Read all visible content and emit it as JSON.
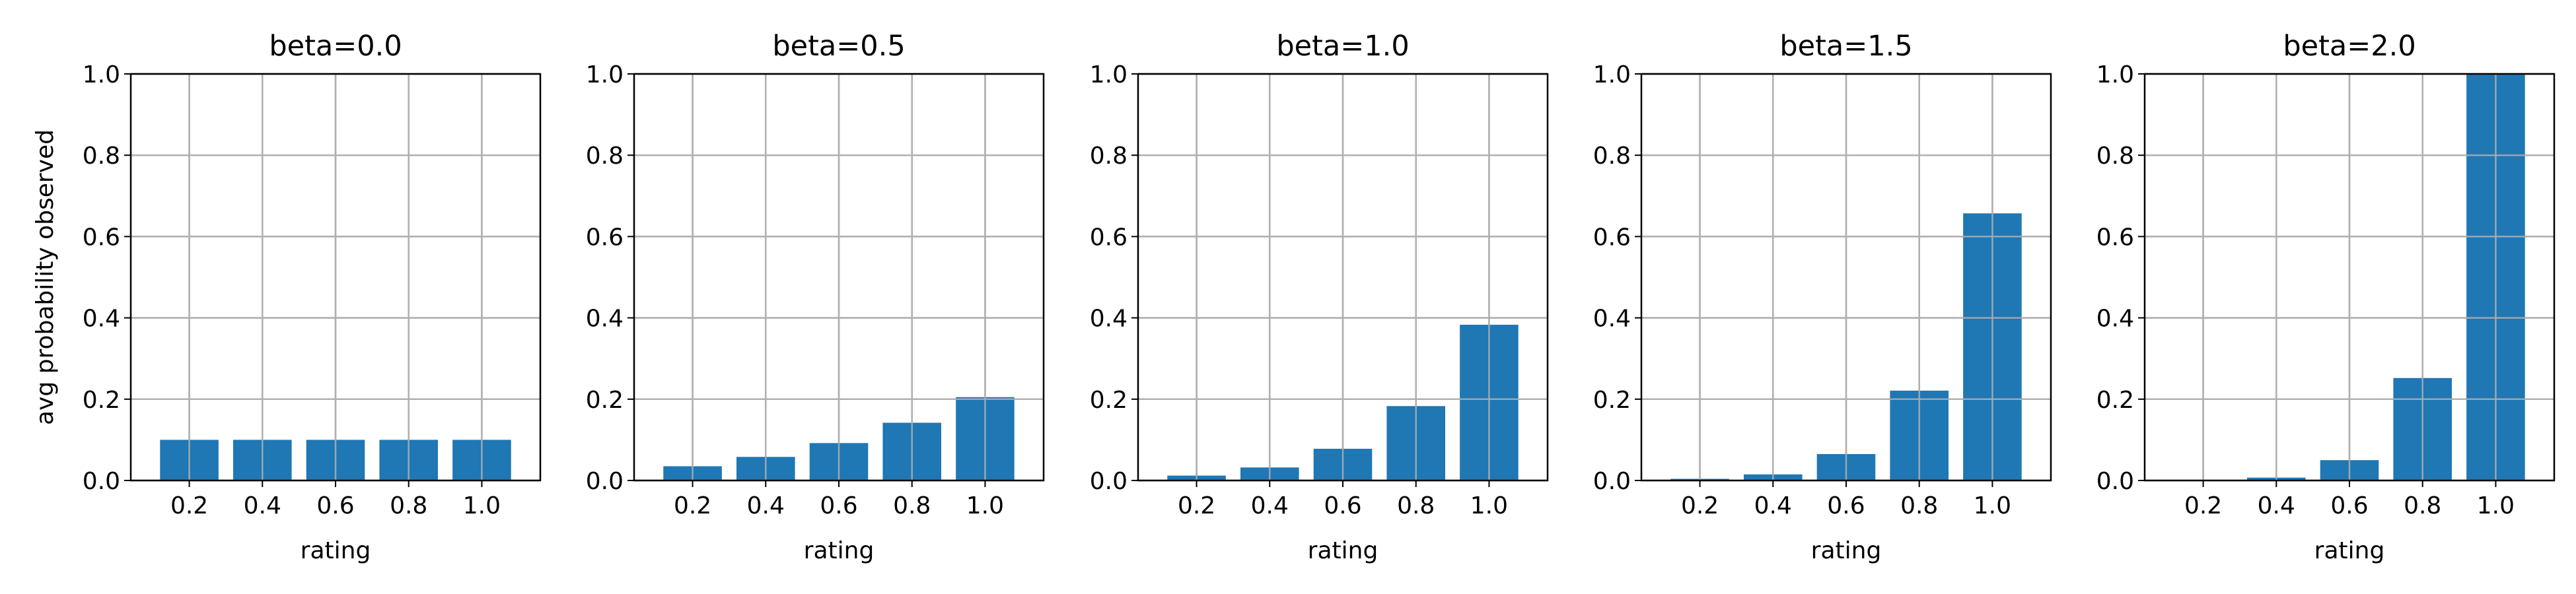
{
  "chart_data": [
    {
      "type": "bar",
      "title": "beta=0.0",
      "xlabel": "rating",
      "ylabel": "avg probability observed",
      "categories": [
        "0.2",
        "0.4",
        "0.6",
        "0.8",
        "1.0"
      ],
      "values": [
        0.1,
        0.1,
        0.1,
        0.1,
        0.1
      ],
      "ylim": [
        0,
        1.0
      ],
      "yticks": [
        "0.0",
        "0.2",
        "0.4",
        "0.6",
        "0.8",
        "1.0"
      ],
      "grid": true,
      "color": "#1f77b4"
    },
    {
      "type": "bar",
      "title": "beta=0.5",
      "xlabel": "rating",
      "ylabel": "",
      "categories": [
        "0.2",
        "0.4",
        "0.6",
        "0.8",
        "1.0"
      ],
      "values": [
        0.035,
        0.058,
        0.092,
        0.142,
        0.205
      ],
      "ylim": [
        0,
        1.0
      ],
      "yticks": [
        "0.0",
        "0.2",
        "0.4",
        "0.6",
        "0.8",
        "1.0"
      ],
      "grid": true,
      "color": "#1f77b4"
    },
    {
      "type": "bar",
      "title": "beta=1.0",
      "xlabel": "rating",
      "ylabel": "",
      "categories": [
        "0.2",
        "0.4",
        "0.6",
        "0.8",
        "1.0"
      ],
      "values": [
        0.012,
        0.032,
        0.078,
        0.183,
        0.383
      ],
      "ylim": [
        0,
        1.0
      ],
      "yticks": [
        "0.0",
        "0.2",
        "0.4",
        "0.6",
        "0.8",
        "1.0"
      ],
      "grid": true,
      "color": "#1f77b4"
    },
    {
      "type": "bar",
      "title": "beta=1.5",
      "xlabel": "rating",
      "ylabel": "",
      "categories": [
        "0.2",
        "0.4",
        "0.6",
        "0.8",
        "1.0"
      ],
      "values": [
        0.004,
        0.015,
        0.065,
        0.221,
        0.657
      ],
      "ylim": [
        0,
        1.0
      ],
      "yticks": [
        "0.0",
        "0.2",
        "0.4",
        "0.6",
        "0.8",
        "1.0"
      ],
      "grid": true,
      "color": "#1f77b4"
    },
    {
      "type": "bar",
      "title": "beta=2.0",
      "xlabel": "rating",
      "ylabel": "",
      "categories": [
        "0.2",
        "0.4",
        "0.6",
        "0.8",
        "1.0"
      ],
      "values": [
        0.001,
        0.007,
        0.05,
        0.252,
        1.0
      ],
      "ylim": [
        0,
        1.0
      ],
      "yticks": [
        "0.0",
        "0.2",
        "0.4",
        "0.6",
        "0.8",
        "1.0"
      ],
      "grid": true,
      "color": "#1f77b4"
    }
  ]
}
